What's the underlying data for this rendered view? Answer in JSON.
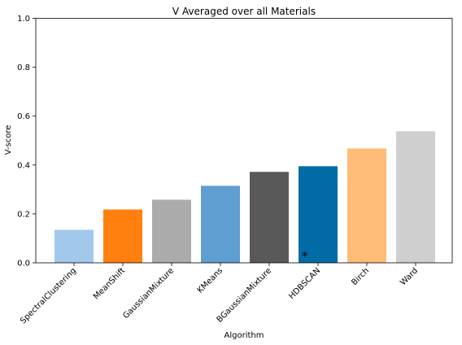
{
  "chart_data": {
    "type": "bar",
    "title": "V Averaged over all Materials",
    "xlabel": "Algorithm",
    "ylabel": "V-score",
    "ylim": [
      0,
      1.0
    ],
    "yticks": [
      0.0,
      0.2,
      0.4,
      0.6,
      0.8,
      1.0
    ],
    "ytick_labels": [
      "0.0",
      "0.2",
      "0.4",
      "0.6",
      "0.8",
      "1.0"
    ],
    "grid": false,
    "categories": [
      "SpectralClustering",
      "MeanShift",
      "GaussianMixture",
      "KMeans",
      "BGaussianMixture",
      "HDBSCAN",
      "Birch",
      "Ward"
    ],
    "values": [
      0.135,
      0.218,
      0.258,
      0.315,
      0.372,
      0.395,
      0.468,
      0.538
    ],
    "colors": [
      "#a2c8ec",
      "#ff800e",
      "#ababab",
      "#5f9ed1",
      "#595959",
      "#006ba4",
      "#ffbc79",
      "#cfcfcf"
    ],
    "annotations": [
      {
        "category": "HDBSCAN",
        "text": "*"
      }
    ]
  }
}
